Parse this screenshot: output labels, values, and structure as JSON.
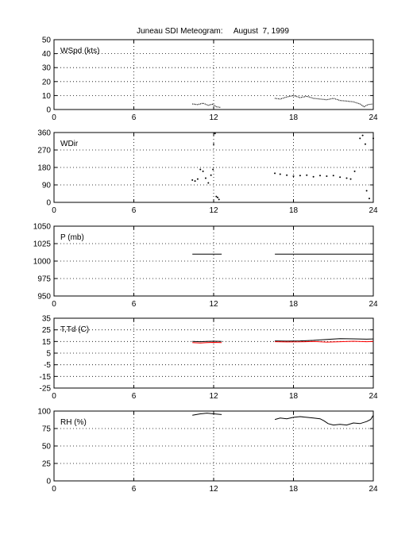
{
  "title": "Juneau SDI Meteogram:     August  7, 1999",
  "chart_data": [
    {
      "type": "line",
      "panel_label": "WSpd (kts)",
      "xlim": [
        0,
        24
      ],
      "xticks": [
        0,
        6,
        12,
        18,
        24
      ],
      "ylim": [
        0,
        50
      ],
      "yticks": [
        0,
        10,
        20,
        30,
        40,
        50
      ],
      "grid": true,
      "series": [
        {
          "color": "#000000",
          "style": "dotted",
          "segments": [
            [
              [
                10.4,
                4.0
              ],
              [
                10.8,
                3.5
              ],
              [
                11.2,
                4.5
              ],
              [
                11.6,
                3.0
              ],
              [
                11.9,
                3.8
              ],
              [
                12.2,
                2.0
              ],
              [
                12.5,
                1.5
              ]
            ],
            [
              [
                16.6,
                8.0
              ],
              [
                17.0,
                7.5
              ],
              [
                17.5,
                9.0
              ],
              [
                18.0,
                10.0
              ],
              [
                18.5,
                8.5
              ],
              [
                19.0,
                9.5
              ],
              [
                19.5,
                8.0
              ],
              [
                20.0,
                7.5
              ],
              [
                20.5,
                7.0
              ],
              [
                21.0,
                8.0
              ],
              [
                21.5,
                6.5
              ],
              [
                22.0,
                6.0
              ],
              [
                22.5,
                5.5
              ],
              [
                23.0,
                4.0
              ],
              [
                23.3,
                2.0
              ],
              [
                23.6,
                3.5
              ],
              [
                24.0,
                4.0
              ]
            ]
          ]
        }
      ]
    },
    {
      "type": "scatter",
      "panel_label": "WDir",
      "xlim": [
        0,
        24
      ],
      "xticks": [
        0,
        6,
        12,
        18,
        24
      ],
      "ylim": [
        0,
        360
      ],
      "yticks": [
        0,
        90,
        180,
        270,
        360
      ],
      "grid": true,
      "series": [
        {
          "color": "#000000",
          "style": "dots",
          "segments": [
            [
              [
                10.4,
                115
              ],
              [
                10.6,
                110
              ],
              [
                10.8,
                120
              ],
              [
                11.0,
                170
              ],
              [
                11.2,
                160
              ],
              [
                11.4,
                125
              ],
              [
                11.6,
                100
              ],
              [
                11.8,
                140
              ],
              [
                11.95,
                170
              ],
              [
                12.0,
                300
              ],
              [
                12.1,
                355
              ],
              [
                12.2,
                30
              ],
              [
                12.3,
                25
              ],
              [
                12.4,
                15
              ]
            ],
            [
              [
                16.6,
                150
              ],
              [
                17.0,
                145
              ],
              [
                17.5,
                140
              ],
              [
                18.0,
                135
              ],
              [
                18.5,
                138
              ],
              [
                19.0,
                140
              ],
              [
                19.5,
                132
              ],
              [
                20.0,
                138
              ],
              [
                20.5,
                135
              ],
              [
                21.0,
                138
              ],
              [
                21.5,
                130
              ],
              [
                22.0,
                125
              ],
              [
                22.3,
                120
              ],
              [
                22.6,
                160
              ],
              [
                23.0,
                330
              ],
              [
                23.2,
                345
              ],
              [
                23.4,
                300
              ],
              [
                23.5,
                60
              ],
              [
                23.7,
                20
              ],
              [
                24.0,
                330
              ]
            ]
          ]
        }
      ]
    },
    {
      "type": "line",
      "panel_label": "P (mb)",
      "xlim": [
        0,
        24
      ],
      "xticks": [
        0,
        6,
        12,
        18,
        24
      ],
      "ylim": [
        950,
        1050
      ],
      "yticks": [
        950,
        975,
        1000,
        1025,
        1050
      ],
      "grid": true,
      "series": [
        {
          "color": "#000000",
          "style": "solid",
          "segments": [
            [
              [
                10.4,
                1010
              ],
              [
                12.6,
                1010
              ]
            ],
            [
              [
                16.6,
                1010
              ],
              [
                24.0,
                1010
              ]
            ]
          ]
        }
      ]
    },
    {
      "type": "line",
      "panel_label": "T,Td (C)",
      "xlim": [
        0,
        24
      ],
      "xticks": [
        0,
        6,
        12,
        18,
        24
      ],
      "ylim": [
        -25,
        35
      ],
      "yticks": [
        -25,
        -15,
        -5,
        5,
        15,
        25,
        35
      ],
      "grid": true,
      "series": [
        {
          "color": "#000000",
          "style": "solid",
          "segments": [
            [
              [
                10.4,
                15.0
              ],
              [
                11.0,
                14.8
              ],
              [
                11.5,
                15.0
              ],
              [
                12.0,
                15.2
              ],
              [
                12.6,
                15.0
              ]
            ],
            [
              [
                16.6,
                15.5
              ],
              [
                17.5,
                15.3
              ],
              [
                18.5,
                15.5
              ],
              [
                19.5,
                16.0
              ],
              [
                20.5,
                16.8
              ],
              [
                21.5,
                17.5
              ],
              [
                22.5,
                17.3
              ],
              [
                23.5,
                17.0
              ],
              [
                24.0,
                17.2
              ]
            ]
          ]
        },
        {
          "color": "#ff0000",
          "style": "solid",
          "segments": [
            [
              [
                10.4,
                14.0
              ],
              [
                11.0,
                13.7
              ],
              [
                11.5,
                14.0
              ],
              [
                12.0,
                14.2
              ],
              [
                12.6,
                14.0
              ]
            ],
            [
              [
                16.6,
                14.8
              ],
              [
                17.5,
                14.6
              ],
              [
                18.5,
                14.7
              ],
              [
                19.5,
                15.0
              ],
              [
                20.5,
                14.5
              ],
              [
                21.5,
                14.8
              ],
              [
                22.5,
                15.2
              ],
              [
                23.5,
                14.8
              ],
              [
                24.0,
                15.0
              ]
            ]
          ]
        }
      ]
    },
    {
      "type": "line",
      "panel_label": "RH (%)",
      "xlim": [
        0,
        24
      ],
      "xticks": [
        0,
        6,
        12,
        18,
        24
      ],
      "ylim": [
        0,
        100
      ],
      "yticks": [
        0,
        25,
        50,
        75,
        100
      ],
      "grid": true,
      "series": [
        {
          "color": "#000000",
          "style": "solid",
          "segments": [
            [
              [
                10.4,
                94
              ],
              [
                11.0,
                96
              ],
              [
                11.5,
                97
              ],
              [
                12.0,
                96
              ],
              [
                12.6,
                95
              ]
            ],
            [
              [
                16.6,
                88
              ],
              [
                17.0,
                90
              ],
              [
                17.5,
                89
              ],
              [
                18.0,
                91
              ],
              [
                18.5,
                92
              ],
              [
                19.0,
                91
              ],
              [
                19.5,
                90
              ],
              [
                20.0,
                89
              ],
              [
                20.3,
                86
              ],
              [
                20.6,
                82
              ],
              [
                21.0,
                80
              ],
              [
                21.5,
                81
              ],
              [
                22.0,
                80
              ],
              [
                22.5,
                83
              ],
              [
                23.0,
                82
              ],
              [
                23.5,
                85
              ],
              [
                23.8,
                88
              ],
              [
                24.0,
                94
              ]
            ]
          ]
        }
      ]
    }
  ]
}
